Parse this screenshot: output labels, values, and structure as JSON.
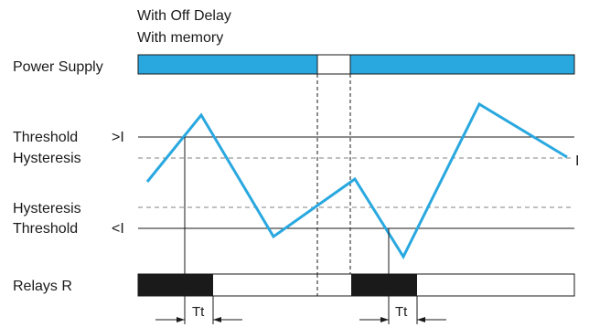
{
  "header": {
    "line1": "With Off Delay",
    "line2": "With memory"
  },
  "rows": {
    "power_supply": "Power Supply",
    "threshold_upper": "Threshold",
    "hysteresis_upper": "Hysteresis",
    "hysteresis_lower": "Hysteresis",
    "threshold_lower": "Threshold",
    "relays": "Relays R"
  },
  "symbols": {
    "over_current": ">I",
    "under_current": "<I",
    "signal": "I"
  },
  "delay_label": "Tt",
  "colors": {
    "power_on": "#29a8e0",
    "signal": "#29a8e0",
    "relay_on": "#1a1a1a",
    "line": "#1a1a1a",
    "hysteresis_dash": "#808080"
  }
}
